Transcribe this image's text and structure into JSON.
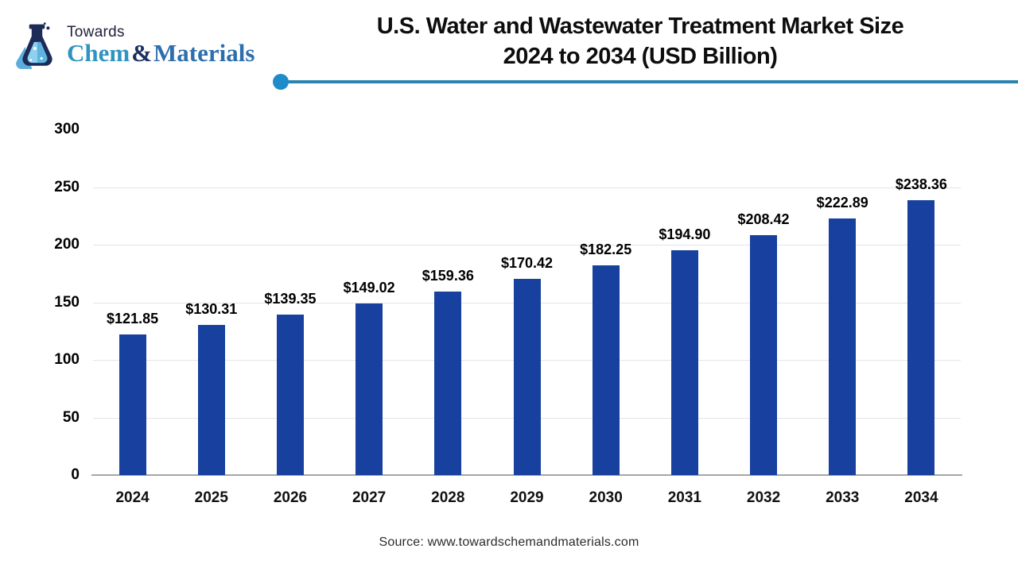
{
  "logo": {
    "brand_top": "Towards",
    "brand_chem": "Chem",
    "brand_amp": "&",
    "brand_materials": "Materials",
    "colors": {
      "towards": "#21213a",
      "chem": "#2f95c0",
      "amp": "#1c2f5e",
      "materials": "#2d6fae",
      "flask_dark": "#1c2b57",
      "flask_light": "#8fd0ee",
      "flask_mid": "#3f9fd6"
    }
  },
  "header": {
    "title_line1": "U.S. Water and Wastewater Treatment Market Size",
    "title_line2": "2024 to 2034 (USD Billion)",
    "divider_line_color": "#2b84b0",
    "divider_dot_color": "#1f8cca"
  },
  "chart_data": {
    "type": "bar",
    "title": "U.S. Water and Wastewater Treatment Market Size 2024 to 2034 (USD Billion)",
    "categories": [
      "2024",
      "2025",
      "2026",
      "2027",
      "2028",
      "2029",
      "2030",
      "2031",
      "2032",
      "2033",
      "2034"
    ],
    "values": [
      121.85,
      130.31,
      139.35,
      149.02,
      159.36,
      170.42,
      182.25,
      194.9,
      208.42,
      222.89,
      238.36
    ],
    "value_labels": [
      "$121.85",
      "$130.31",
      "$139.35",
      "$149.02",
      "$159.36",
      "$170.42",
      "$182.25",
      "$194.90",
      "$208.42",
      "$222.89",
      "$238.36"
    ],
    "xlabel": "",
    "ylabel": "",
    "ylim": [
      0,
      300
    ],
    "yticks": [
      0,
      50,
      100,
      150,
      200,
      250,
      300
    ],
    "grid": true,
    "legend_position": "none",
    "bar_color": "#17409f",
    "gridline_color": "#e4e4e4",
    "axis_line_color": "#a6a6a6"
  },
  "footer": {
    "source": "Source: www.towardschemandmaterials.com"
  }
}
